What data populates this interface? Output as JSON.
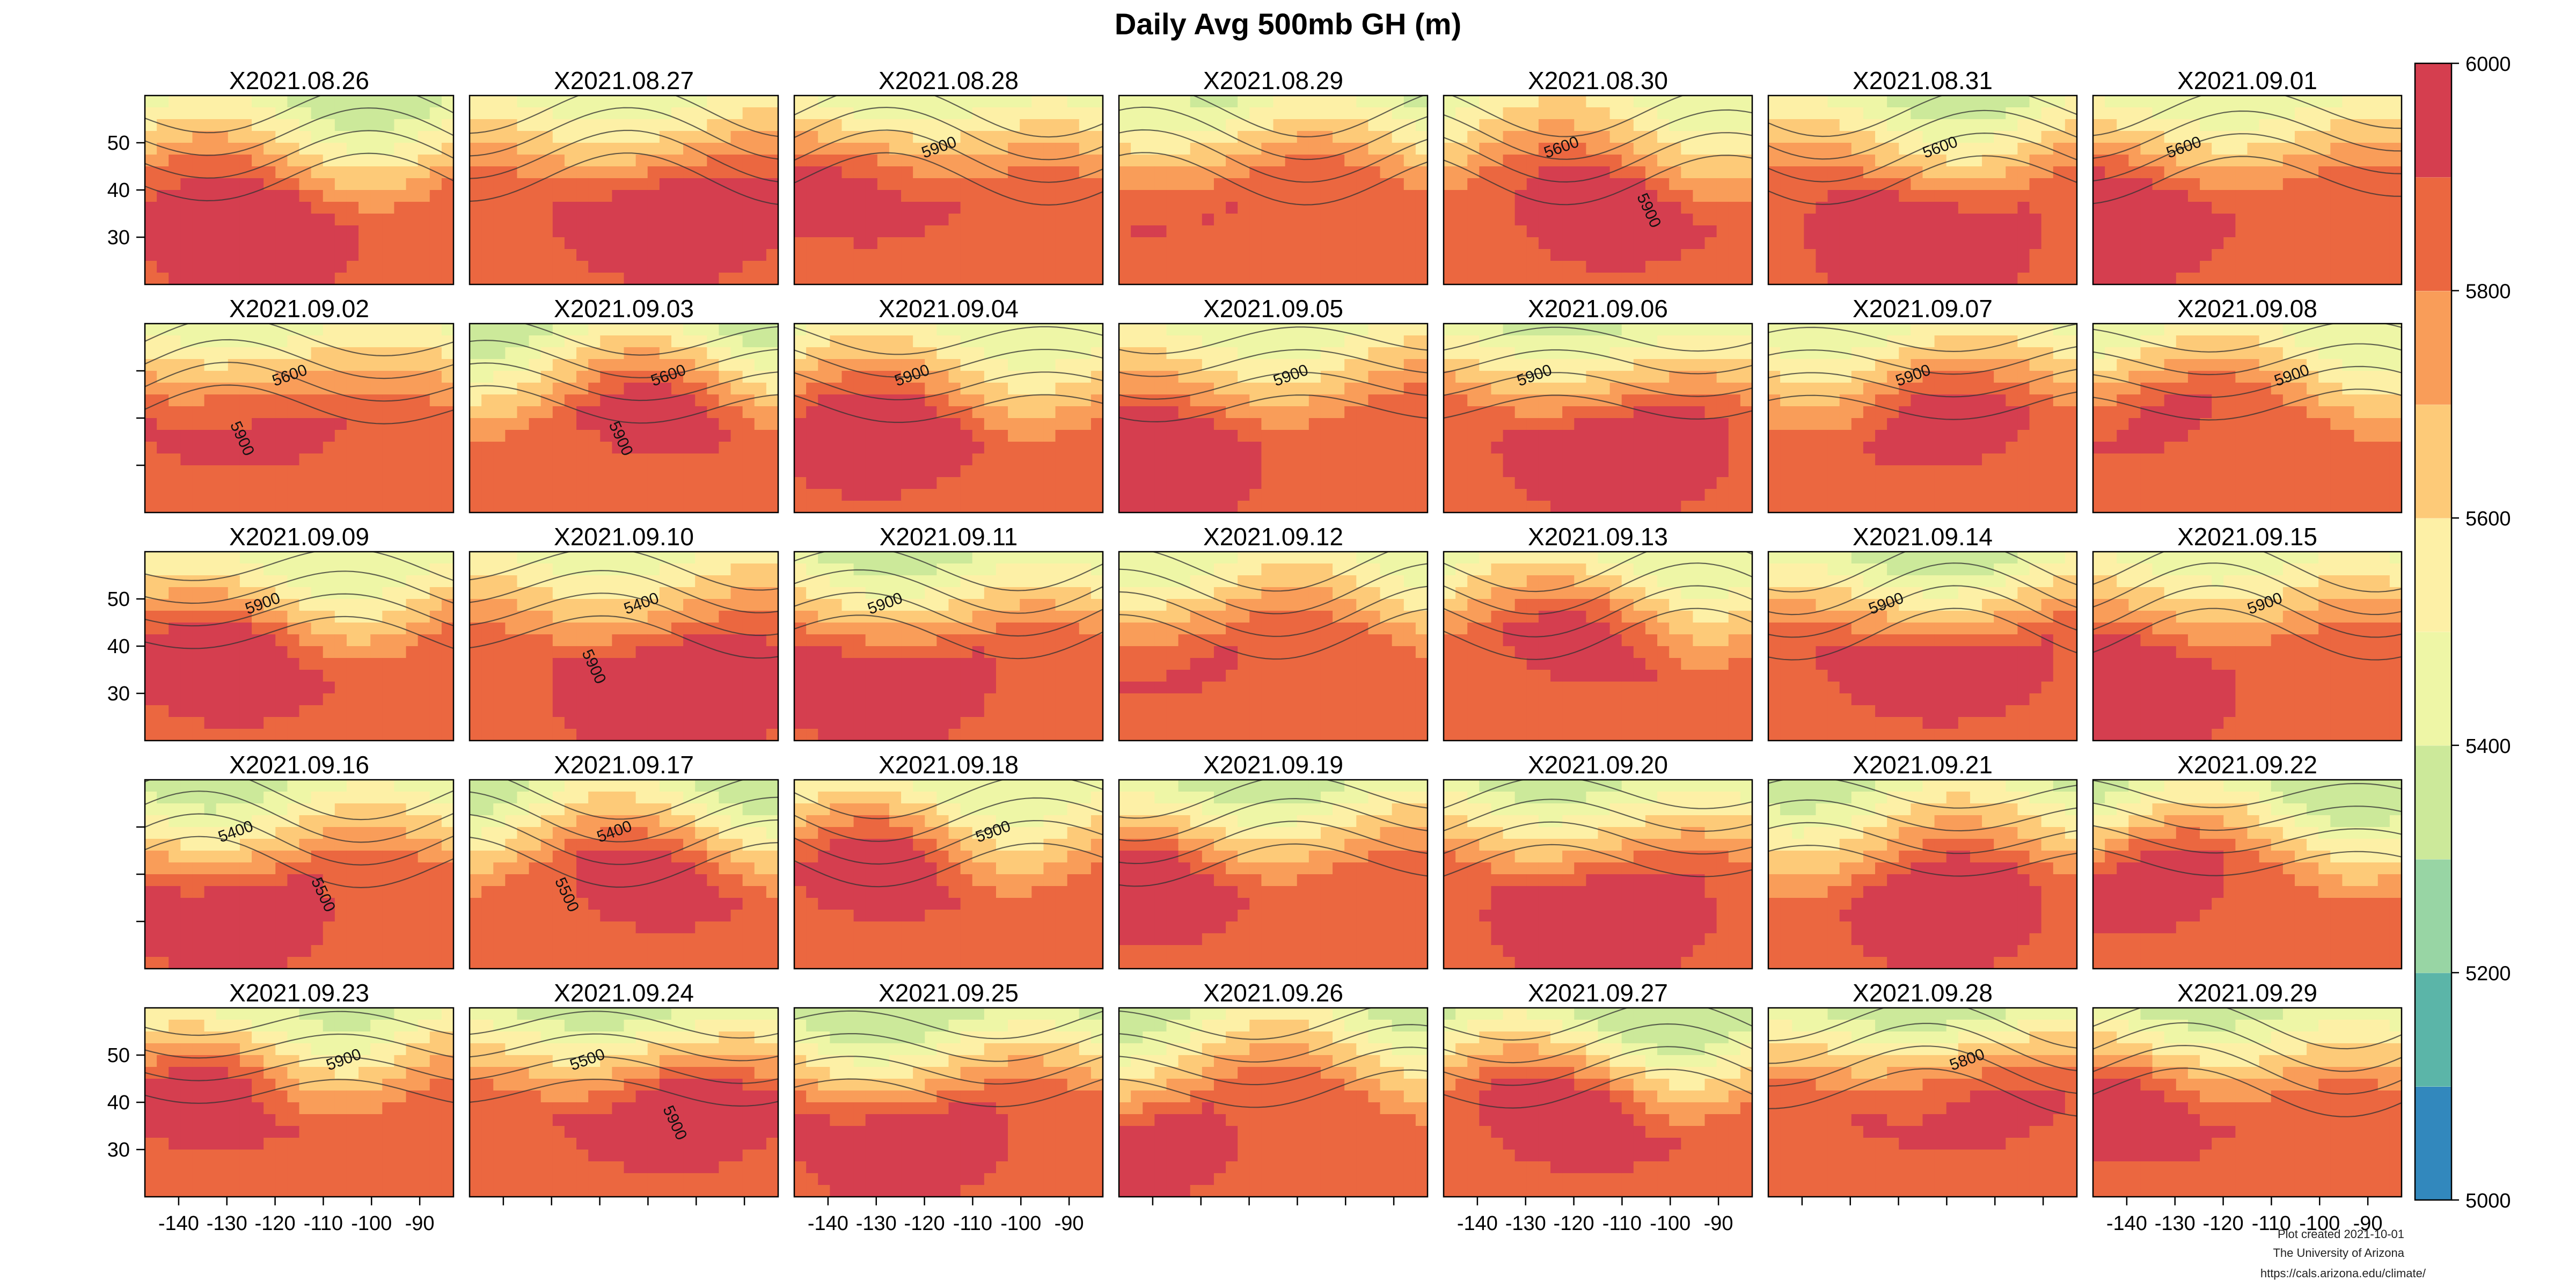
{
  "title": "Daily Avg 500mb GH (m)",
  "panels": [
    "X2021.08.26",
    "X2021.08.27",
    "X2021.08.28",
    "X2021.08.29",
    "X2021.08.30",
    "X2021.08.31",
    "X2021.09.01",
    "X2021.09.02",
    "X2021.09.03",
    "X2021.09.04",
    "X2021.09.05",
    "X2021.09.06",
    "X2021.09.07",
    "X2021.09.08",
    "X2021.09.09",
    "X2021.09.10",
    "X2021.09.11",
    "X2021.09.12",
    "X2021.09.13",
    "X2021.09.14",
    "X2021.09.15",
    "X2021.09.16",
    "X2021.09.17",
    "X2021.09.18",
    "X2021.09.19",
    "X2021.09.20",
    "X2021.09.21",
    "X2021.09.22",
    "X2021.09.23",
    "X2021.09.24",
    "X2021.09.25",
    "X2021.09.26",
    "X2021.09.27",
    "X2021.09.28",
    "X2021.09.29"
  ],
  "axes": {
    "lat_ticks": [
      "50",
      "40",
      "30"
    ],
    "lat_values": [
      50,
      40,
      30
    ],
    "lat_range": [
      20,
      60
    ],
    "lon_ticks": [
      "-140",
      "-130",
      "-120",
      "-110",
      "-100",
      "-90"
    ],
    "lon_values": [
      -140,
      -130,
      -120,
      -110,
      -100,
      -90
    ],
    "lon_range": [
      -147,
      -83
    ],
    "lat_label_rows": [
      0,
      2,
      4
    ],
    "lon_label_cols": [
      0,
      2,
      4,
      6
    ]
  },
  "colorbar": {
    "min": 5000,
    "max": 6000,
    "ticks": [
      "5000",
      "5200",
      "5400",
      "5600",
      "5800",
      "6000"
    ],
    "colors": [
      "#3288bd",
      "#66c2a5",
      "#abdda4",
      "#e6f598",
      "#fee08b",
      "#fdae61",
      "#f46d43",
      "#d53e4f"
    ],
    "bands": [
      {
        "from": 5000,
        "to": 5100,
        "color": "#3288bd"
      },
      {
        "from": 5100,
        "to": 5200,
        "color": "#5bb5a8"
      },
      {
        "from": 5200,
        "to": 5300,
        "color": "#98d5a4"
      },
      {
        "from": 5300,
        "to": 5400,
        "color": "#cce99a"
      },
      {
        "from": 5400,
        "to": 5500,
        "color": "#eef6a6"
      },
      {
        "from": 5500,
        "to": 5600,
        "color": "#fdf0a6"
      },
      {
        "from": 5600,
        "to": 5700,
        "color": "#fdca78"
      },
      {
        "from": 5700,
        "to": 5800,
        "color": "#f99d59"
      },
      {
        "from": 5800,
        "to": 5900,
        "color": "#eb6740"
      },
      {
        "from": 5900,
        "to": 6000,
        "color": "#d53e4f"
      }
    ]
  },
  "contour_labels": [
    {
      "panel": 2,
      "text": "5900"
    },
    {
      "panel": 4,
      "text": "5600"
    },
    {
      "panel": 4,
      "text": "5900"
    },
    {
      "panel": 5,
      "text": "5600"
    },
    {
      "panel": 6,
      "text": "5600"
    },
    {
      "panel": 7,
      "text": "5600"
    },
    {
      "panel": 7,
      "text": "5900"
    },
    {
      "panel": 8,
      "text": "5600"
    },
    {
      "panel": 8,
      "text": "5900"
    },
    {
      "panel": 9,
      "text": "5900"
    },
    {
      "panel": 10,
      "text": "5900"
    },
    {
      "panel": 11,
      "text": "5900"
    },
    {
      "panel": 12,
      "text": "5900"
    },
    {
      "panel": 13,
      "text": "5900"
    },
    {
      "panel": 14,
      "text": "5900"
    },
    {
      "panel": 15,
      "text": "5400"
    },
    {
      "panel": 15,
      "text": "5900"
    },
    {
      "panel": 16,
      "text": "5900"
    },
    {
      "panel": 19,
      "text": "5900"
    },
    {
      "panel": 20,
      "text": "5900"
    },
    {
      "panel": 21,
      "text": "5400"
    },
    {
      "panel": 21,
      "text": "5500"
    },
    {
      "panel": 22,
      "text": "5400"
    },
    {
      "panel": 22,
      "text": "5500"
    },
    {
      "panel": 23,
      "text": "5900"
    },
    {
      "panel": 28,
      "text": "5900"
    },
    {
      "panel": 29,
      "text": "5500"
    },
    {
      "panel": 29,
      "text": "5900"
    },
    {
      "panel": 33,
      "text": "5800"
    }
  ],
  "credits": {
    "line1": "Plot created 2021-10-01",
    "line2": "The University of Arizona",
    "line3": "https://cals.arizona.edu/climate/"
  }
}
